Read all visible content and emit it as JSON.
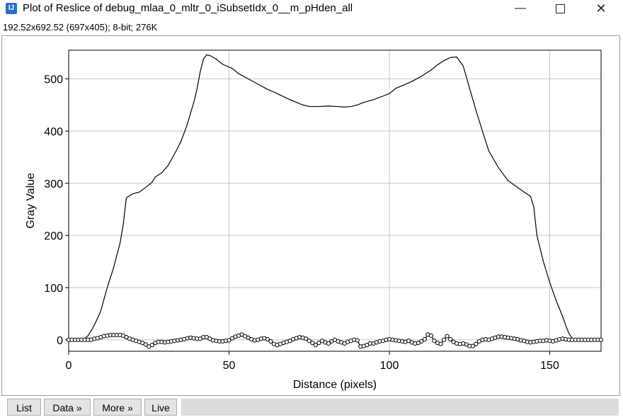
{
  "window": {
    "title": "Plot of Reslice of debug_mlaa_0_mltr_0_iSubsetIdx_0__m_pHden_all",
    "icon": "imagej-icon",
    "minimize_glyph": "—",
    "close_glyph": "✕"
  },
  "subtitle": "192.52x692.52  (697x405); 8-bit; 276K",
  "buttons": {
    "list": "List",
    "data": "Data »",
    "more": "More »",
    "live": "Live"
  },
  "chart_data": {
    "type": "line",
    "xlabel": "Distance (pixels)",
    "ylabel": "Gray Value",
    "xlim": [
      0,
      166
    ],
    "ylim": [
      -22,
      555
    ],
    "x_ticks": [
      0,
      50,
      100,
      150
    ],
    "y_ticks": [
      0,
      100,
      200,
      300,
      400,
      500
    ],
    "grid": true,
    "series": [
      {
        "style": "line",
        "points": [
          [
            0,
            0
          ],
          [
            4,
            0
          ],
          [
            5,
            2
          ],
          [
            6,
            8
          ],
          [
            7,
            17
          ],
          [
            8,
            28
          ],
          [
            10,
            55
          ],
          [
            12,
            100
          ],
          [
            14,
            138
          ],
          [
            16,
            185
          ],
          [
            17,
            220
          ],
          [
            18,
            272
          ],
          [
            20,
            280
          ],
          [
            22,
            283
          ],
          [
            24,
            292
          ],
          [
            26,
            302
          ],
          [
            27,
            312
          ],
          [
            29,
            320
          ],
          [
            31,
            334
          ],
          [
            33,
            356
          ],
          [
            35,
            380
          ],
          [
            37,
            413
          ],
          [
            39,
            455
          ],
          [
            40,
            480
          ],
          [
            41,
            513
          ],
          [
            42,
            538
          ],
          [
            43,
            546
          ],
          [
            44,
            545
          ],
          [
            46,
            538
          ],
          [
            48,
            528
          ],
          [
            51,
            520
          ],
          [
            53,
            510
          ],
          [
            56,
            500
          ],
          [
            59,
            490
          ],
          [
            62,
            480
          ],
          [
            65,
            472
          ],
          [
            68,
            463
          ],
          [
            71,
            455
          ],
          [
            73,
            450
          ],
          [
            75,
            447
          ],
          [
            78,
            447
          ],
          [
            81,
            448
          ],
          [
            84,
            447
          ],
          [
            86,
            446
          ],
          [
            88,
            447
          ],
          [
            90,
            450
          ],
          [
            92,
            455
          ],
          [
            95,
            460
          ],
          [
            98,
            467
          ],
          [
            100,
            472
          ],
          [
            102,
            482
          ],
          [
            104,
            487
          ],
          [
            107,
            495
          ],
          [
            110,
            505
          ],
          [
            113,
            517
          ],
          [
            115,
            527
          ],
          [
            117,
            535
          ],
          [
            119,
            541
          ],
          [
            121,
            542
          ],
          [
            123,
            525
          ],
          [
            125,
            482
          ],
          [
            127,
            440
          ],
          [
            129,
            400
          ],
          [
            131,
            362
          ],
          [
            134,
            330
          ],
          [
            137,
            305
          ],
          [
            140,
            292
          ],
          [
            142,
            283
          ],
          [
            144,
            275
          ],
          [
            145,
            255
          ],
          [
            146,
            200
          ],
          [
            148,
            150
          ],
          [
            150,
            110
          ],
          [
            152,
            75
          ],
          [
            154,
            45
          ],
          [
            155,
            27
          ],
          [
            156,
            12
          ],
          [
            157,
            3
          ],
          [
            158,
            0
          ],
          [
            166,
            0
          ]
        ]
      },
      {
        "style": "markers",
        "points": [
          [
            0,
            0
          ],
          [
            1,
            0
          ],
          [
            2,
            0
          ],
          [
            3,
            0
          ],
          [
            4,
            0
          ],
          [
            5,
            0
          ],
          [
            6,
            0
          ],
          [
            7,
            0
          ],
          [
            8,
            2
          ],
          [
            9,
            3
          ],
          [
            10,
            5
          ],
          [
            11,
            7
          ],
          [
            12,
            8
          ],
          [
            13,
            9
          ],
          [
            14,
            9
          ],
          [
            15,
            9
          ],
          [
            16,
            9
          ],
          [
            17,
            8
          ],
          [
            18,
            5
          ],
          [
            19,
            2
          ],
          [
            20,
            0
          ],
          [
            21,
            -2
          ],
          [
            22,
            -4
          ],
          [
            23,
            -6
          ],
          [
            24,
            -9
          ],
          [
            25,
            -13
          ],
          [
            26,
            -10
          ],
          [
            27,
            -6
          ],
          [
            28,
            -4
          ],
          [
            29,
            -4
          ],
          [
            30,
            -5
          ],
          [
            31,
            -4
          ],
          [
            32,
            -3
          ],
          [
            33,
            -2
          ],
          [
            34,
            -1
          ],
          [
            35,
            0
          ],
          [
            36,
            1
          ],
          [
            37,
            3
          ],
          [
            38,
            4
          ],
          [
            39,
            3
          ],
          [
            40,
            2
          ],
          [
            41,
            2
          ],
          [
            42,
            5
          ],
          [
            43,
            5
          ],
          [
            44,
            2
          ],
          [
            45,
            -1
          ],
          [
            46,
            -2
          ],
          [
            47,
            -3
          ],
          [
            48,
            -3
          ],
          [
            49,
            -2
          ],
          [
            50,
            -1
          ],
          [
            51,
            3
          ],
          [
            52,
            6
          ],
          [
            53,
            8
          ],
          [
            54,
            10
          ],
          [
            55,
            7
          ],
          [
            56,
            4
          ],
          [
            57,
            1
          ],
          [
            58,
            -1
          ],
          [
            59,
            0
          ],
          [
            60,
            2
          ],
          [
            61,
            3
          ],
          [
            62,
            1
          ],
          [
            63,
            -3
          ],
          [
            64,
            -8
          ],
          [
            65,
            -10
          ],
          [
            66,
            -8
          ],
          [
            67,
            -6
          ],
          [
            68,
            -4
          ],
          [
            69,
            -2
          ],
          [
            70,
            1
          ],
          [
            71,
            3
          ],
          [
            72,
            5
          ],
          [
            73,
            4
          ],
          [
            74,
            2
          ],
          [
            75,
            -2
          ],
          [
            76,
            -6
          ],
          [
            77,
            -10
          ],
          [
            78,
            -6
          ],
          [
            79,
            -2
          ],
          [
            80,
            -5
          ],
          [
            81,
            -7
          ],
          [
            82,
            -3
          ],
          [
            83,
            0
          ],
          [
            84,
            -3
          ],
          [
            85,
            -5
          ],
          [
            86,
            -7
          ],
          [
            87,
            -4
          ],
          [
            88,
            -2
          ],
          [
            89,
            0
          ],
          [
            90,
            -1
          ],
          [
            91,
            -13
          ],
          [
            92,
            -12
          ],
          [
            93,
            -10
          ],
          [
            94,
            -7
          ],
          [
            95,
            -7
          ],
          [
            96,
            -5
          ],
          [
            97,
            -3
          ],
          [
            98,
            -2
          ],
          [
            99,
            0
          ],
          [
            100,
            1
          ],
          [
            101,
            0
          ],
          [
            102,
            -1
          ],
          [
            103,
            -2
          ],
          [
            104,
            -3
          ],
          [
            105,
            -4
          ],
          [
            106,
            -2
          ],
          [
            107,
            -5
          ],
          [
            108,
            -7
          ],
          [
            109,
            -6
          ],
          [
            110,
            -3
          ],
          [
            111,
            1
          ],
          [
            112,
            10
          ],
          [
            113,
            8
          ],
          [
            114,
            -2
          ],
          [
            115,
            -6
          ],
          [
            116,
            -8
          ],
          [
            117,
            0
          ],
          [
            118,
            7
          ],
          [
            119,
            1
          ],
          [
            120,
            -4
          ],
          [
            121,
            -7
          ],
          [
            122,
            -8
          ],
          [
            123,
            -7
          ],
          [
            124,
            -9
          ],
          [
            125,
            -12
          ],
          [
            126,
            -12
          ],
          [
            127,
            -8
          ],
          [
            128,
            -3
          ],
          [
            129,
            0
          ],
          [
            130,
            1
          ],
          [
            131,
            0
          ],
          [
            132,
            2
          ],
          [
            133,
            4
          ],
          [
            134,
            6
          ],
          [
            135,
            6
          ],
          [
            136,
            5
          ],
          [
            137,
            4
          ],
          [
            138,
            3
          ],
          [
            139,
            2
          ],
          [
            140,
            1
          ],
          [
            141,
            -1
          ],
          [
            142,
            -2
          ],
          [
            143,
            -4
          ],
          [
            144,
            -5
          ],
          [
            145,
            -4
          ],
          [
            146,
            -3
          ],
          [
            147,
            -2
          ],
          [
            148,
            -2
          ],
          [
            149,
            -1
          ],
          [
            150,
            -2
          ],
          [
            151,
            -3
          ],
          [
            152,
            -1
          ],
          [
            153,
            1
          ],
          [
            154,
            2
          ],
          [
            155,
            1
          ],
          [
            156,
            0
          ],
          [
            157,
            0
          ],
          [
            158,
            0
          ],
          [
            159,
            0
          ],
          [
            160,
            0
          ],
          [
            161,
            0
          ],
          [
            162,
            0
          ],
          [
            163,
            0
          ],
          [
            164,
            0
          ],
          [
            165,
            0
          ],
          [
            166,
            0
          ]
        ]
      }
    ]
  }
}
